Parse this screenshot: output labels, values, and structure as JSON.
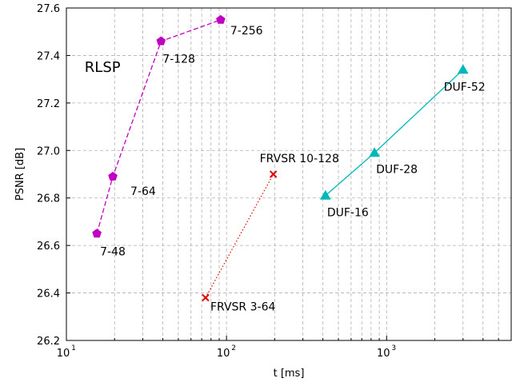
{
  "chart_data": {
    "type": "scatter",
    "title": "",
    "xlabel": "t [ms]",
    "ylabel": "PSNR [dB]",
    "xscale": "log",
    "xlim": [
      10,
      6000
    ],
    "ylim": [
      26.2,
      27.6
    ],
    "xticks": [
      10,
      100,
      1000
    ],
    "xtick_labels": [
      {
        "base": "10",
        "exp": "1"
      },
      {
        "base": "10",
        "exp": "2"
      },
      {
        "base": "10",
        "exp": "3"
      }
    ],
    "yticks": [
      26.2,
      26.4,
      26.6,
      26.8,
      27.0,
      27.2,
      27.4,
      27.6
    ],
    "ytick_labels": [
      "26.2",
      "26.4",
      "26.6",
      "26.8",
      "27.0",
      "27.2",
      "27.4",
      "27.6"
    ],
    "grid": true,
    "annotations": [
      {
        "text": "RLSP",
        "x": 13,
        "y": 27.33
      }
    ],
    "series": [
      {
        "name": "",
        "color": "#c000c0",
        "marker": "pentagon",
        "line": "dashed",
        "points": [
          {
            "x": 15.5,
            "y": 26.65,
            "label": "7-48"
          },
          {
            "x": 19.5,
            "y": 26.89,
            "label": "7-64"
          },
          {
            "x": 39,
            "y": 27.46,
            "label": "7-128"
          },
          {
            "x": 92,
            "y": 27.55,
            "label": "7-256"
          }
        ]
      },
      {
        "name": "",
        "color": "#e00000",
        "marker": "x",
        "line": "dotted",
        "points": [
          {
            "x": 74,
            "y": 26.38,
            "label": "FRVSR 3-64"
          },
          {
            "x": 196,
            "y": 26.9,
            "label": "FRVSR 10-128"
          }
        ]
      },
      {
        "name": "",
        "color": "#00b8b8",
        "marker": "triangle",
        "line": "solid",
        "points": [
          {
            "x": 415,
            "y": 26.81,
            "label": "DUF-16"
          },
          {
            "x": 840,
            "y": 26.99,
            "label": "DUF-28"
          },
          {
            "x": 3000,
            "y": 27.34,
            "label": "DUF-52"
          }
        ]
      }
    ]
  }
}
